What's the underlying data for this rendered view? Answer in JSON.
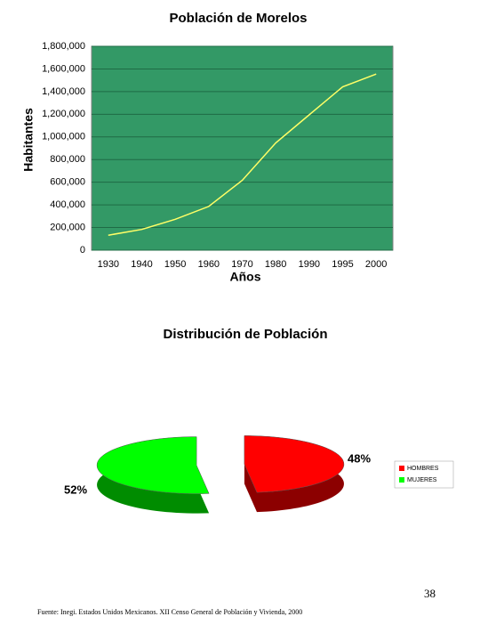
{
  "chart_data": [
    {
      "type": "line",
      "title": "Población de Morelos",
      "xlabel": "Años",
      "ylabel": "Habitantes",
      "categories": [
        "1930",
        "1940",
        "1950",
        "1960",
        "1970",
        "1980",
        "1990",
        "1995",
        "2000"
      ],
      "values": [
        132000,
        183000,
        273000,
        386000,
        616000,
        947000,
        1195000,
        1442000,
        1555000
      ],
      "color": "#ffff66",
      "background": "#339966",
      "grid": true,
      "ylim": [
        0,
        1800000
      ],
      "yticks": [
        0,
        {
          "value": 200000,
          "label": "200,000"
        },
        {
          "value": 400000,
          "label": "400,000"
        },
        {
          "value": 600000,
          "label": "600,000"
        },
        {
          "value": 800000,
          "label": "800,000"
        },
        {
          "value": 1000000,
          "label": "1,000,000"
        },
        {
          "value": 1200000,
          "label": "1,200,000"
        },
        {
          "value": 1400000,
          "label": "1,400,000"
        },
        {
          "value": 1600000,
          "label": "1,600,000"
        },
        {
          "value": 1800000,
          "label": "1,800,000"
        }
      ]
    },
    {
      "type": "pie",
      "title": "Distribución de Población",
      "categories": [
        "HOMBRES",
        "MUJERES"
      ],
      "values": [
        48,
        52
      ],
      "value_labels": [
        "48%",
        "52%"
      ],
      "colors": [
        "#ff0000",
        "#00ff00"
      ],
      "legend": "right"
    }
  ],
  "footer": {
    "page_number": "38",
    "source": "Fuente: Inegi. Estados Unidos Mexicanos. XII Censo General de Población y Vivienda, 2000"
  }
}
